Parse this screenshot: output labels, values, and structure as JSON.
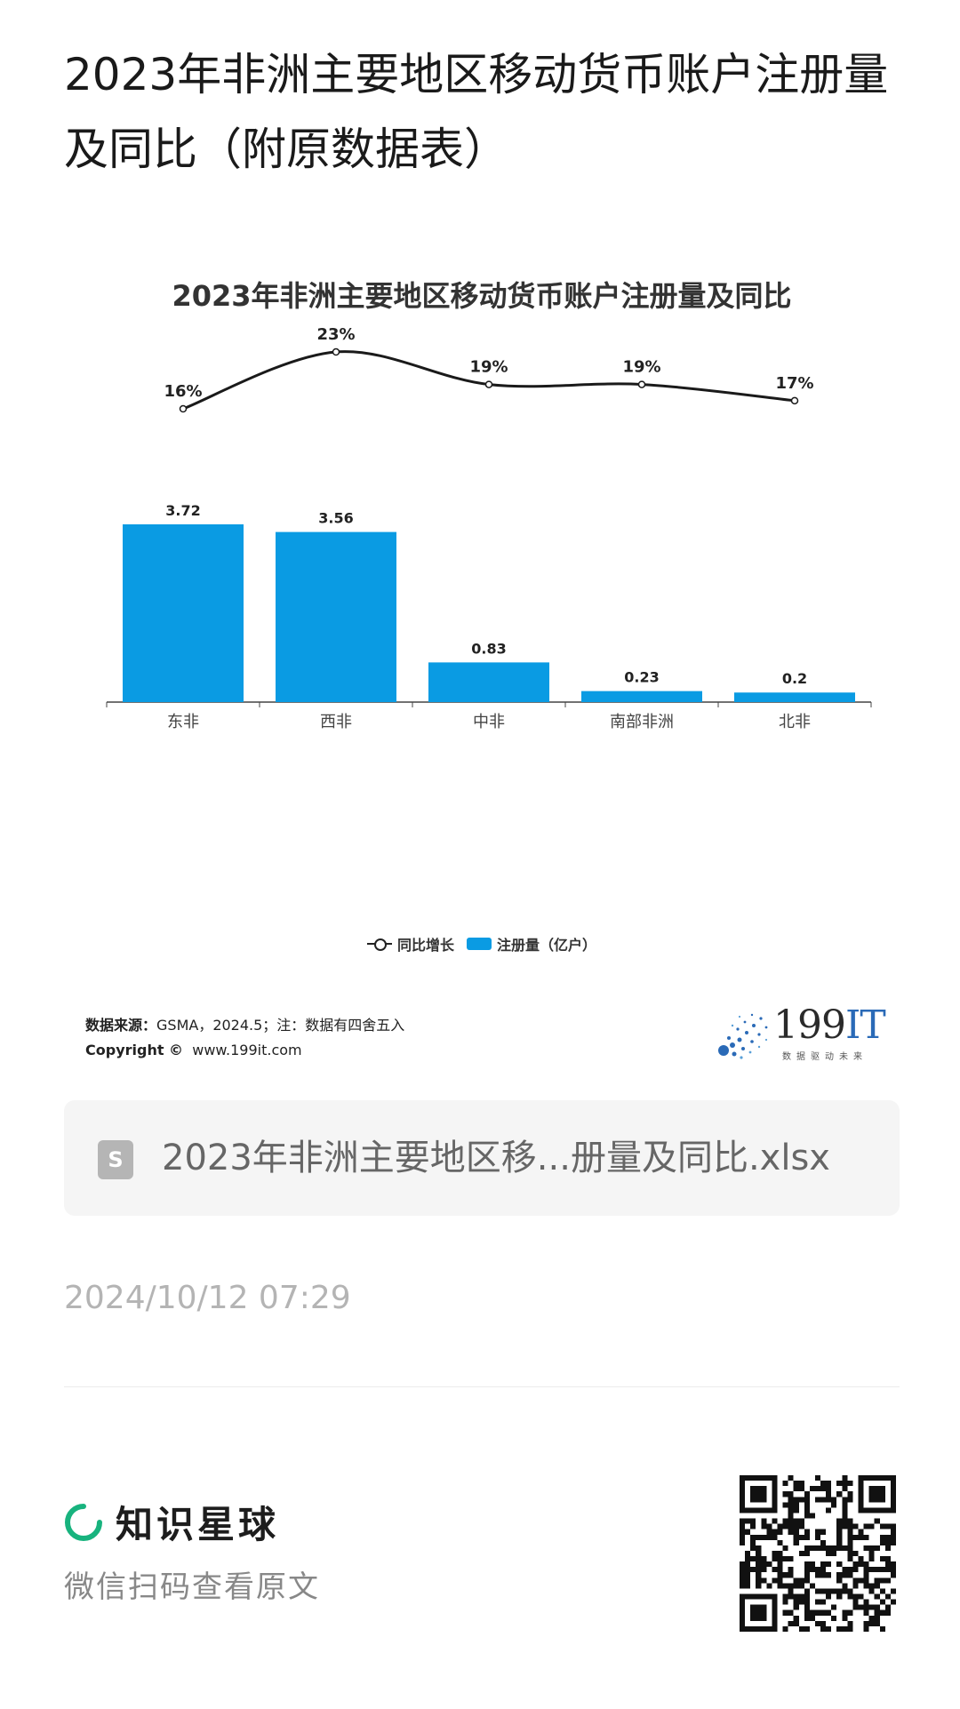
{
  "page_title": "2023年非洲主要地区移动货币账户注册量及同比（附原数据表）",
  "chart_data": {
    "type": "bar",
    "title": "2023年非洲主要地区移动货币账户注册量及同比",
    "categories": [
      "东非",
      "西非",
      "中非",
      "南部非洲",
      "北非"
    ],
    "series": [
      {
        "name": "注册量（亿户）",
        "type": "bar",
        "values": [
          3.72,
          3.56,
          0.83,
          0.23,
          0.2
        ],
        "color": "#0a9be3"
      },
      {
        "name": "同比增长",
        "type": "line",
        "values": [
          16,
          23,
          19,
          19,
          17
        ],
        "labels": [
          "16%",
          "23%",
          "19%",
          "19%",
          "17%"
        ],
        "color": "#1a1a1a"
      }
    ],
    "legend": [
      "同比增长",
      "注册量（亿户）"
    ],
    "legend_position": "bottom",
    "grid": false
  },
  "source": {
    "label": "数据来源：",
    "text": "GSMA，2024.5；注：数据有四舍五入",
    "copyright_label": "Copyright ©",
    "copyright_url": "www.199it.com"
  },
  "brand": {
    "name_num": "199",
    "name_it": "IT",
    "tagline": "数据驱动未来"
  },
  "file": {
    "icon": "spreadsheet-icon",
    "icon_letter": "S",
    "name": "2023年非洲主要地区移...册量及同比.xlsx"
  },
  "timestamp": "2024/10/12 07:29",
  "footer": {
    "app_name": "知识星球",
    "scan_hint": "微信扫码查看原文"
  },
  "colors": {
    "accent_bar": "#0a9be3",
    "zsxq_green": "#18b37e"
  }
}
